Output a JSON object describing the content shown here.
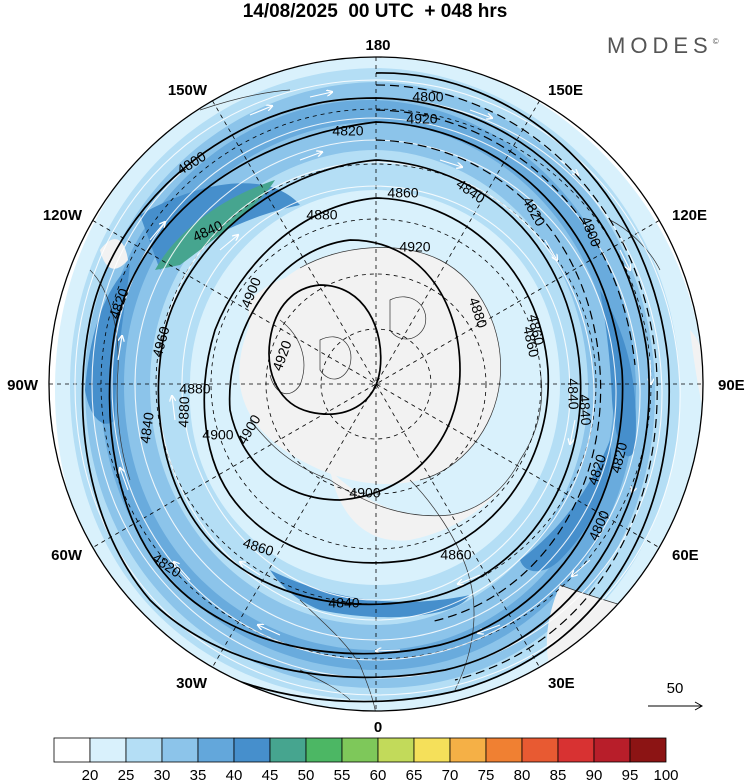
{
  "title": "14/08/2025  00 UTC  + 048 hrs",
  "brand": {
    "name": "MODES",
    "mark": "©"
  },
  "longitude_labels": {
    "n": "180",
    "s": "0",
    "e": "90E",
    "w": "90W",
    "e150": "150E",
    "e120": "120E",
    "e60": "60E",
    "e30": "30E",
    "w150": "150W",
    "w120": "120W",
    "w60": "60W",
    "w30": "30W"
  },
  "contour_labels": [
    "4800",
    "4820",
    "4860",
    "4840",
    "4820",
    "4800",
    "4840",
    "4880",
    "4900",
    "4920",
    "4900",
    "4880",
    "4860",
    "4840",
    "4820",
    "4800",
    "4920",
    "4900",
    "4880",
    "4860",
    "4840",
    "4820",
    "4920",
    "4960",
    "4880",
    "4860",
    "4840",
    "4820",
    "4800",
    "4900",
    "4860",
    "4840",
    "4820"
  ],
  "vector_reference": {
    "label": "50"
  },
  "colorbar": {
    "labels": [
      "20",
      "25",
      "30",
      "35",
      "40",
      "45",
      "50",
      "55",
      "60",
      "65",
      "70",
      "75",
      "80",
      "85",
      "90",
      "95",
      "100"
    ],
    "colors": [
      "#ffffff",
      "#d9f1fc",
      "#b4def5",
      "#8cc4ea",
      "#63a7db",
      "#468fcc",
      "#46a58f",
      "#4cb764",
      "#7ec85a",
      "#c2da5a",
      "#f5e05a",
      "#f5b046",
      "#f08032",
      "#e85a32",
      "#d83232",
      "#b81e2a",
      "#8c1414"
    ]
  },
  "map_colors": {
    "land": "#f2f2f2",
    "coast": "#333333",
    "contour": "#000000",
    "streamline": "#ffffff"
  }
}
